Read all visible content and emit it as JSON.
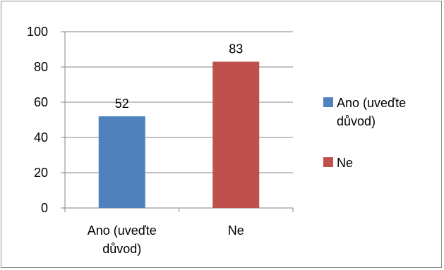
{
  "chart_data": {
    "type": "bar",
    "categories": [
      "Ano (uveďte důvod)",
      "Ne"
    ],
    "category_lines": [
      [
        "Ano (uveďte",
        "důvod)"
      ],
      [
        "Ne"
      ]
    ],
    "values": [
      52,
      83
    ],
    "data_labels": [
      "52",
      "83"
    ],
    "colors": [
      "#4f81bd",
      "#c0504d"
    ],
    "ylim": [
      0,
      100
    ],
    "yticks": [
      "0",
      "20",
      "40",
      "60",
      "80",
      "100"
    ],
    "ytick_values": [
      0,
      20,
      40,
      60,
      80,
      100
    ],
    "grid": true,
    "legend_position": "right",
    "legend": [
      {
        "lines": [
          "Ano (uveďte",
          "důvod)"
        ],
        "color": "#4f81bd"
      },
      {
        "lines": [
          "Ne"
        ],
        "color": "#c0504d"
      }
    ],
    "title": "",
    "xlabel": "",
    "ylabel": ""
  }
}
